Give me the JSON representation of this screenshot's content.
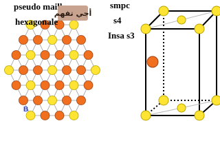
{
  "left_title": {
    "line1": "pseudo maille",
    "line2": "hexagonale"
  },
  "badge": "أجي تفهم",
  "tags": [
    "smpc",
    "s4",
    "Insa s3"
  ],
  "point_label": "B"
}
